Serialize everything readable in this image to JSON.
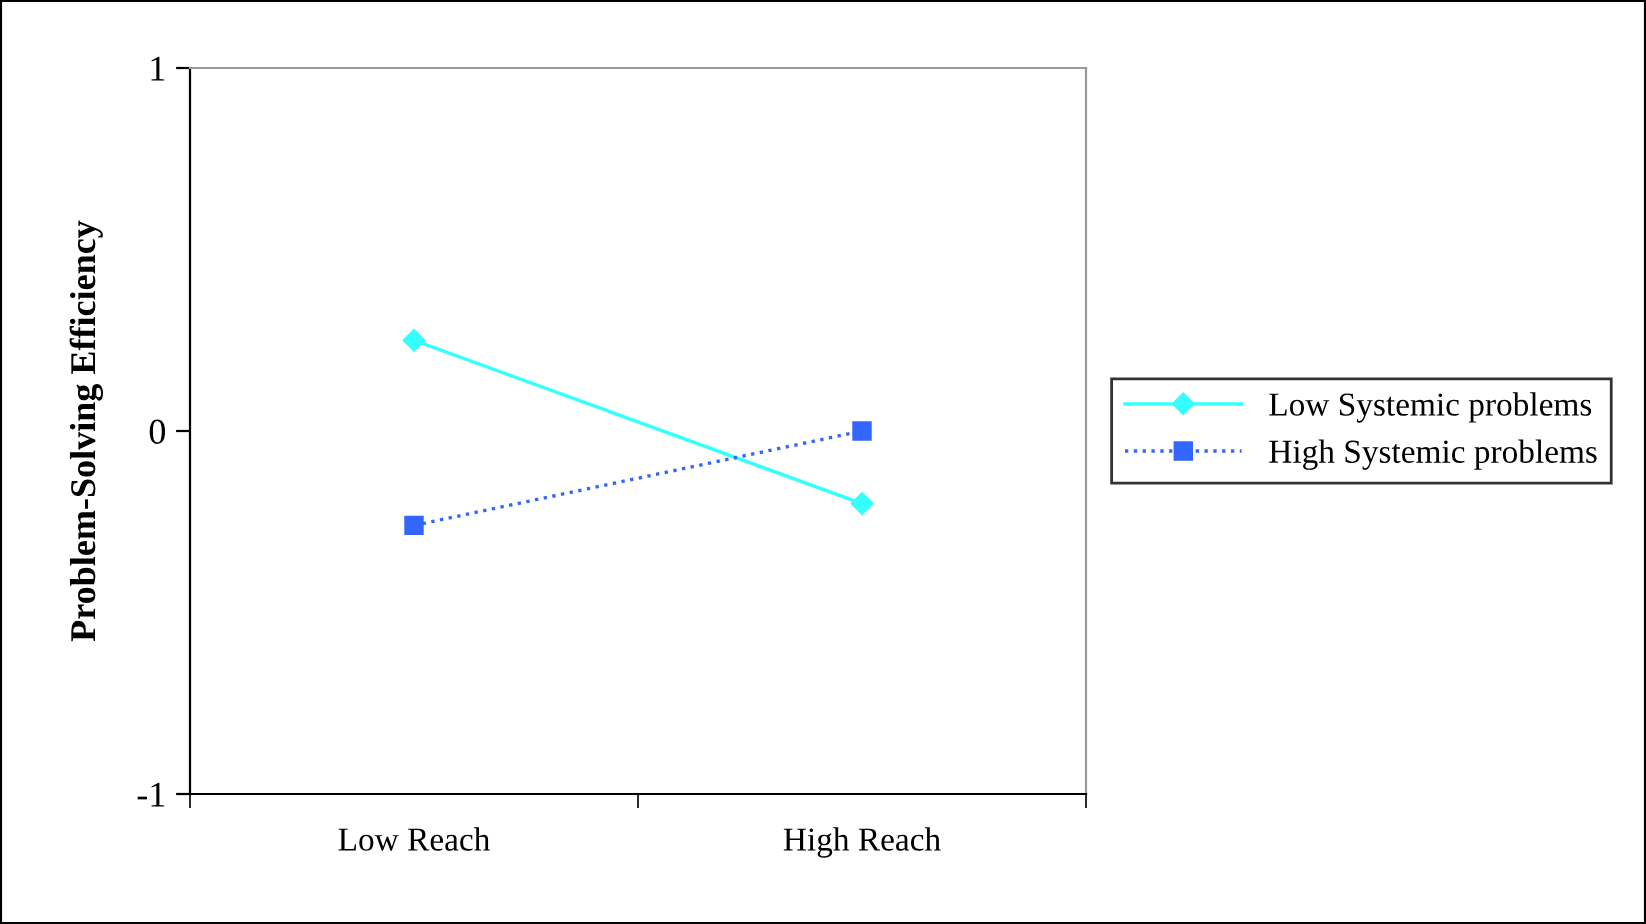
{
  "chart_data": {
    "type": "line",
    "ylabel": "Problem-Solving Efficiency",
    "categories": [
      "Low Reach",
      "High Reach"
    ],
    "series": [
      {
        "name": "Low Systemic problems",
        "color": "#33ffff",
        "values": [
          0.25,
          -0.2
        ],
        "marker": "diamond",
        "line_style": "solid"
      },
      {
        "name": "High Systemic problems",
        "color": "#3366ff",
        "values": [
          -0.26,
          0.0
        ],
        "marker": "square",
        "line_style": "dotted"
      }
    ],
    "ylim": [
      -1,
      1
    ],
    "yticks": [
      -1,
      0,
      1
    ],
    "grid": false,
    "legend": "right"
  }
}
